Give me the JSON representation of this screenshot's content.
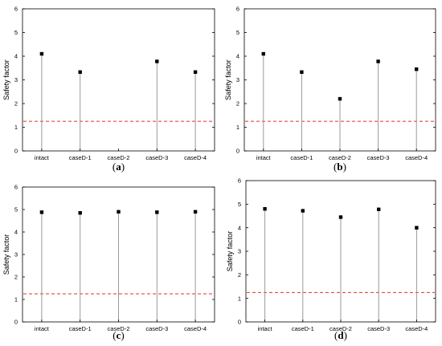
{
  "figure": {
    "threshold": 1.25,
    "threshold_color": "#e0302a",
    "stem_color": "#9a9a9a",
    "marker_color": "#000000"
  },
  "chart_data": [
    {
      "type": "scatter",
      "panel": "(a)",
      "panel_letter": "a",
      "categories": [
        "intact",
        "caseD-1",
        "caseD-2",
        "caseD-3",
        "caseD-4"
      ],
      "values": [
        4.1,
        3.33,
        null,
        3.78,
        3.33
      ],
      "ylabel": "Safety factor",
      "xlabel": "",
      "ylim": [
        0,
        6
      ],
      "yticks": [
        "0",
        "1",
        "2",
        "3",
        "4",
        "5",
        "6"
      ],
      "reference_line": 1.25
    },
    {
      "type": "scatter",
      "panel": "(b)",
      "panel_letter": "b",
      "categories": [
        "intact",
        "caseD-1",
        "caseD-2",
        "caseD-3",
        "caseD-4"
      ],
      "values": [
        4.1,
        3.33,
        2.2,
        3.78,
        3.45
      ],
      "ylabel": "Safety factor",
      "xlabel": "",
      "ylim": [
        0,
        6
      ],
      "yticks": [
        "0",
        "1",
        "2",
        "3",
        "4",
        "5",
        "6"
      ],
      "reference_line": 1.25
    },
    {
      "type": "scatter",
      "panel": "(c)",
      "panel_letter": "c",
      "categories": [
        "intact",
        "caseD-1",
        "caseD-2",
        "caseD-3",
        "caseD-4"
      ],
      "values": [
        4.88,
        4.85,
        4.9,
        4.88,
        4.9
      ],
      "ylabel": "Safety factor",
      "xlabel": "",
      "ylim": [
        0,
        6
      ],
      "yticks": [
        "0",
        "1",
        "2",
        "3",
        "4",
        "5",
        "6"
      ],
      "reference_line": 1.25
    },
    {
      "type": "scatter",
      "panel": "(d)",
      "panel_letter": "d",
      "categories": [
        "intact",
        "caseD-1",
        "caseD-2",
        "caseD-3",
        "caseD-4"
      ],
      "values": [
        4.8,
        4.72,
        4.45,
        4.78,
        4.0
      ],
      "ylabel": "Safety factor",
      "xlabel": "",
      "ylim": [
        0,
        6
      ],
      "yticks": [
        "0",
        "1",
        "2",
        "3",
        "4",
        "5",
        "6"
      ],
      "reference_line": 1.25
    }
  ]
}
